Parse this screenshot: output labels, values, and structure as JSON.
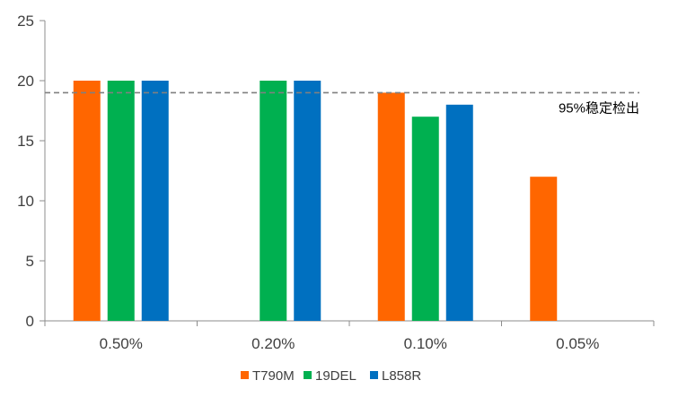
{
  "chart_data": {
    "type": "bar",
    "categories": [
      "0.50%",
      "0.20%",
      "0.10%",
      "0.05%"
    ],
    "series": [
      {
        "name": "T790M",
        "color": "#ff6600",
        "values": [
          20,
          0,
          19,
          12
        ]
      },
      {
        "name": "19DEL",
        "color": "#00b050",
        "values": [
          20,
          20,
          17,
          0
        ]
      },
      {
        "name": "L858R",
        "color": "#0070c0",
        "values": [
          20,
          20,
          18,
          0
        ]
      }
    ],
    "ylim": [
      0,
      25
    ],
    "yticks": [
      0,
      5,
      10,
      15,
      20,
      25
    ],
    "grid": false,
    "legend": "bottom",
    "reference_line": {
      "value": 19,
      "label": "95%稳定检出",
      "style": "dashed",
      "color": "#808080"
    }
  }
}
